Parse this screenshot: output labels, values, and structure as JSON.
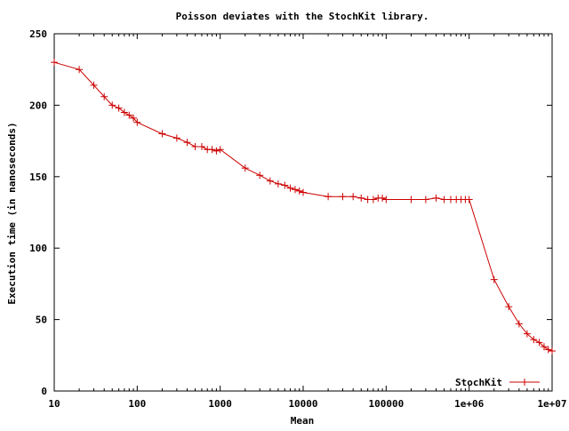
{
  "chart_data": {
    "type": "line",
    "title": "Poisson deviates with the StochKit library.",
    "xlabel": "Mean",
    "ylabel": "Execution time (in nanoseconds)",
    "xscale": "log",
    "xlim": [
      10,
      10000000
    ],
    "ylim": [
      0,
      250
    ],
    "x_ticks": [
      10,
      100,
      1000,
      10000,
      100000,
      1000000,
      10000000
    ],
    "x_tick_labels": [
      "10",
      "100",
      "1000",
      "10000",
      "100000",
      "1e+06",
      "1e+07"
    ],
    "y_ticks": [
      0,
      50,
      100,
      150,
      200,
      250
    ],
    "y_tick_labels": [
      "0",
      "50",
      "100",
      "150",
      "200",
      "250"
    ],
    "grid": false,
    "legend": "bottom-right",
    "series": [
      {
        "name": "StochKit",
        "color": "#cc0000",
        "marker": "plus",
        "x": [
          10,
          20,
          30,
          40,
          50,
          60,
          70,
          80,
          90,
          100,
          200,
          300,
          400,
          500,
          600,
          700,
          800,
          900,
          1000,
          2000,
          3000,
          4000,
          5000,
          6000,
          7000,
          8000,
          9000,
          10000,
          20000,
          30000,
          40000,
          50000,
          60000,
          70000,
          80000,
          90000,
          100000,
          200000,
          300000,
          400000,
          500000,
          600000,
          700000,
          800000,
          900000,
          1000000,
          2000000,
          3000000,
          4000000,
          5000000,
          6000000,
          7000000,
          8000000,
          9000000,
          10000000
        ],
        "y": [
          230,
          225,
          214,
          206,
          200,
          198,
          195,
          193,
          191,
          188,
          180,
          177,
          174,
          171,
          171,
          169,
          169,
          168,
          169,
          156,
          151,
          147,
          145,
          144,
          142,
          141,
          140,
          139,
          136,
          136,
          136,
          135,
          134,
          134,
          135,
          135,
          134,
          134,
          134,
          135,
          134,
          134,
          134,
          134,
          134,
          134,
          78,
          59,
          47,
          40,
          36,
          34,
          31,
          29,
          28
        ]
      }
    ]
  }
}
